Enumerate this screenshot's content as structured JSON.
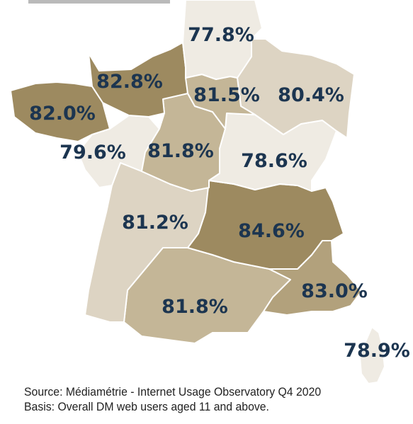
{
  "colors": {
    "lightest": "#efebe3",
    "light": "#ddd4c3",
    "medium": "#c4b697",
    "dark": "#b2a17c",
    "darkest": "#9d8a60",
    "label": "#1c3550"
  },
  "regions": [
    {
      "id": "ile-de-france",
      "value": "77.8%",
      "shade": "lightest"
    },
    {
      "id": "normandie",
      "value": "82.8%",
      "shade": "darkest"
    },
    {
      "id": "hauts-de-france-centre",
      "value": "81.5%",
      "shade": "medium"
    },
    {
      "id": "grand-est",
      "value": "80.4%",
      "shade": "light"
    },
    {
      "id": "bretagne",
      "value": "82.0%",
      "shade": "darkest"
    },
    {
      "id": "pays-de-la-loire",
      "value": "79.6%",
      "shade": "lightest"
    },
    {
      "id": "centre-val-de-loire",
      "value": "81.8%",
      "shade": "medium"
    },
    {
      "id": "bourgogne-franche-comte",
      "value": "78.6%",
      "shade": "lightest"
    },
    {
      "id": "nouvelle-aquitaine",
      "value": "81.2%",
      "shade": "light"
    },
    {
      "id": "auvergne-rhone-alpes",
      "value": "84.6%",
      "shade": "darkest"
    },
    {
      "id": "provence-alpes-cote-dazur",
      "value": "83.0%",
      "shade": "dark"
    },
    {
      "id": "occitanie",
      "value": "81.8%",
      "shade": "medium"
    },
    {
      "id": "corse",
      "value": "78.9%",
      "shade": "lightest"
    }
  ],
  "footer": {
    "source": "Source: Médiamétrie - Internet Usage Observatory Q4 2020",
    "basis": "Basis: Overall DM web users aged 11 and above."
  }
}
